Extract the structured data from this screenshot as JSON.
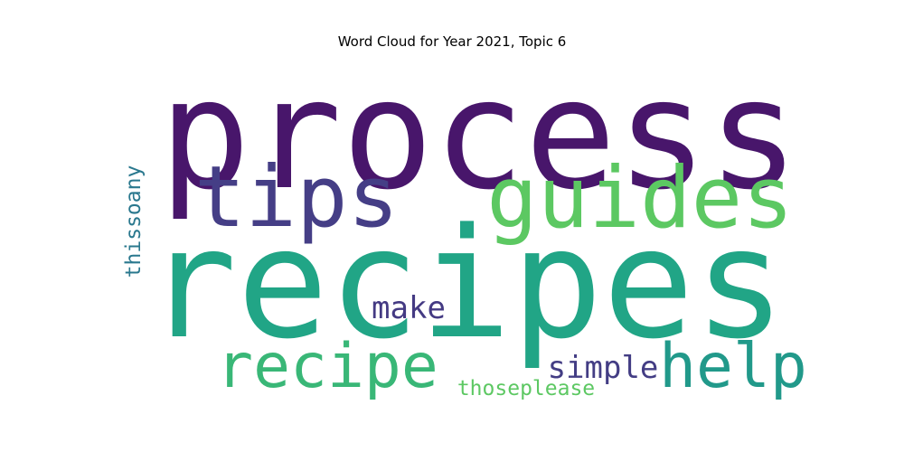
{
  "chart_data": {
    "type": "wordcloud",
    "title": "Word Cloud for Year 2021, Topic 6",
    "words": [
      {
        "text": "process",
        "color": "#48166b"
      },
      {
        "text": "recipes",
        "color": "#21a586"
      },
      {
        "text": "tips",
        "color": "#453e86"
      },
      {
        "text": "guides",
        "color": "#5cc862"
      },
      {
        "text": "recipe",
        "color": "#39b777"
      },
      {
        "text": "help",
        "color": "#21998a"
      },
      {
        "text": "make",
        "color": "#443a83"
      },
      {
        "text": "simple",
        "color": "#433d84"
      },
      {
        "text": "thoseplease",
        "color": "#5dc863"
      },
      {
        "text": "thissoany",
        "color": "#2a788e"
      }
    ]
  }
}
